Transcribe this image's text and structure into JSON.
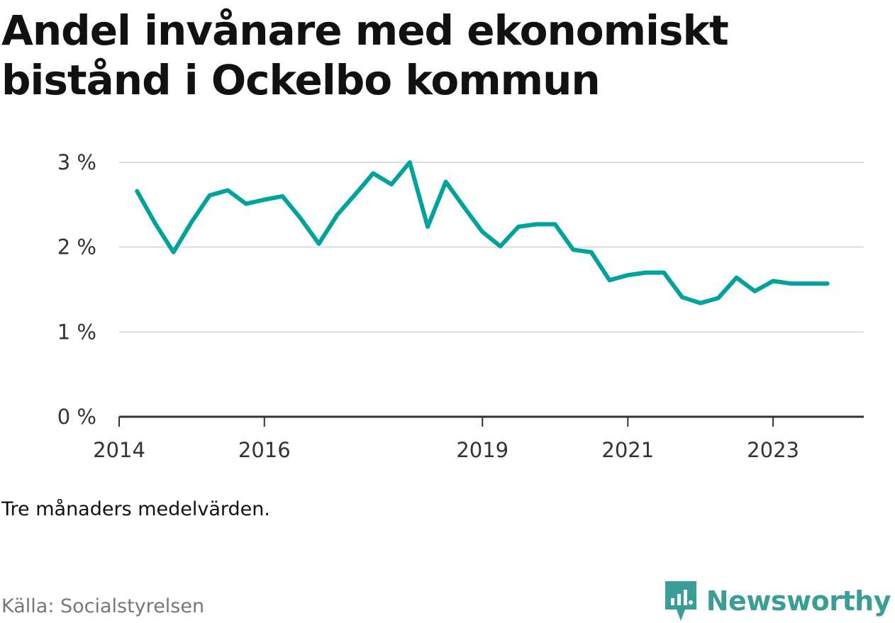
{
  "header": {
    "title": "Andel invånare med ekonomiskt bistånd i Ockelbo kommun"
  },
  "footer": {
    "note": "Tre månaders medelvärden.",
    "source": "Källa: Socialstyrelsen",
    "brand": "Newsworthy",
    "brand_icon": "newsworthy-logo-icon"
  },
  "colors": {
    "line": "#00a39b",
    "grid": "#dddddd",
    "axis": "#333333",
    "brand": "#3a9e97"
  },
  "chart_data": {
    "type": "line",
    "title": "Andel invånare med ekonomiskt bistånd i Ockelbo kommun",
    "xlabel": "",
    "ylabel": "",
    "ylim": [
      0,
      3
    ],
    "yticks": [
      0,
      1,
      2,
      3
    ],
    "ytick_labels": [
      "0 %",
      "1 %",
      "2 %",
      "3 %"
    ],
    "xlim": [
      "2014-01-01",
      "2024-04-01"
    ],
    "xticks": [
      "2014-01-01",
      "2016-01-01",
      "2019-01-01",
      "2021-01-01",
      "2023-01-01"
    ],
    "xtick_labels": [
      "2014",
      "2016",
      "2019",
      "2021",
      "2023"
    ],
    "grid": true,
    "series": [
      {
        "x": [
          "2014-04-01",
          "2014-07-01",
          "2014-10-01",
          "2015-01-01",
          "2015-04-01",
          "2015-07-01",
          "2015-10-01",
          "2016-01-01",
          "2016-04-01",
          "2016-07-01",
          "2016-10-01",
          "2017-01-01",
          "2017-04-01",
          "2017-07-01",
          "2017-10-01",
          "2018-01-01",
          "2018-04-01",
          "2018-07-01",
          "2018-10-01",
          "2019-01-01",
          "2019-04-01",
          "2019-07-01",
          "2019-10-01",
          "2020-01-01",
          "2020-04-01",
          "2020-07-01",
          "2020-10-01",
          "2021-01-01",
          "2021-04-01",
          "2021-07-01",
          "2021-10-01",
          "2022-01-01",
          "2022-04-01",
          "2022-07-01",
          "2022-10-01",
          "2023-01-01",
          "2023-04-01",
          "2023-07-01",
          "2023-10-01"
        ],
        "values": [
          2.66,
          2.28,
          1.94,
          2.3,
          2.61,
          2.67,
          2.51,
          2.56,
          2.6,
          2.34,
          2.04,
          2.38,
          2.62,
          2.87,
          2.74,
          3.0,
          2.24,
          2.77,
          2.47,
          2.18,
          2.01,
          2.24,
          2.27,
          2.27,
          1.97,
          1.94,
          1.61,
          1.67,
          1.7,
          1.7,
          1.41,
          1.34,
          1.4,
          1.64,
          1.48,
          1.6,
          1.57,
          1.57,
          1.57
        ]
      }
    ]
  }
}
